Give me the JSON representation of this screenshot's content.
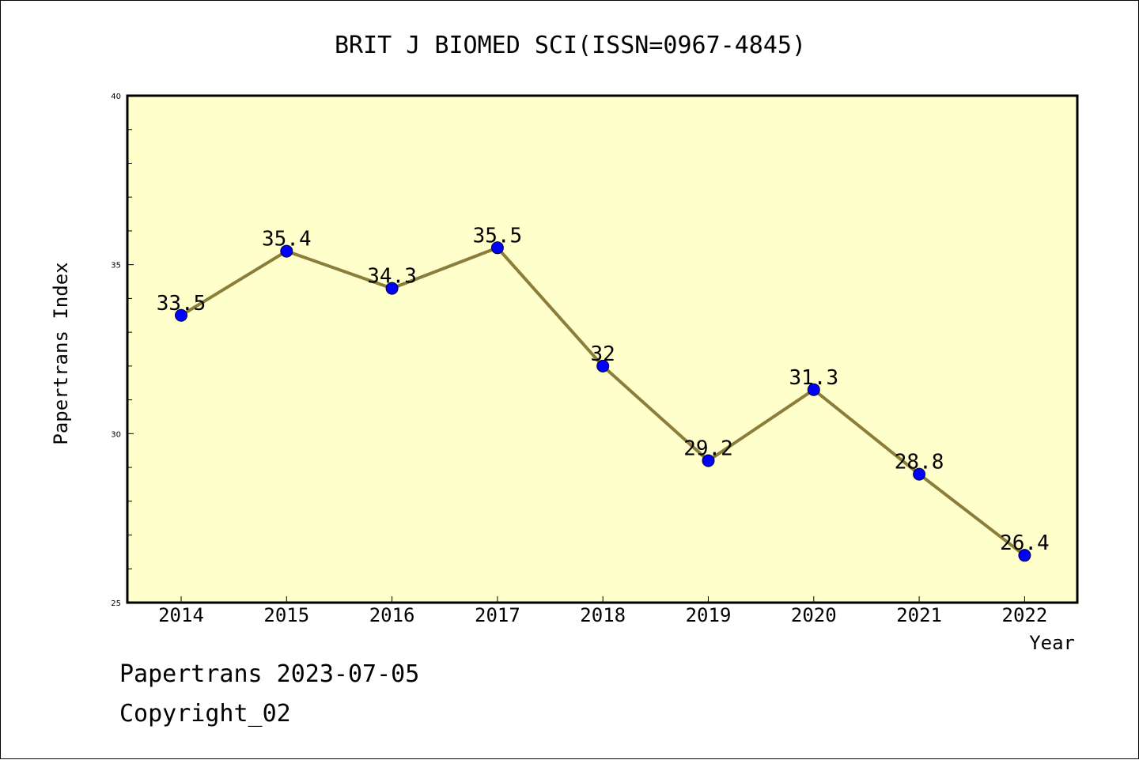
{
  "chart_data": {
    "type": "line",
    "title": "BRIT J BIOMED SCI(ISSN=0967-4845)",
    "xlabel": "Year",
    "ylabel": "Papertrans Index",
    "categories": [
      "2014",
      "2015",
      "2016",
      "2017",
      "2018",
      "2019",
      "2020",
      "2021",
      "2022"
    ],
    "values": [
      33.5,
      35.4,
      34.3,
      35.5,
      32,
      29.2,
      31.3,
      28.8,
      26.4
    ],
    "data_labels": [
      "33.5",
      "35.4",
      "34.3",
      "35.5",
      "32",
      "29.2",
      "31.3",
      "28.8",
      "26.4"
    ],
    "ylim": [
      25,
      40
    ],
    "y_ticks": [
      "25",
      "30",
      "35",
      "40"
    ],
    "grid": false,
    "colors": {
      "plot_background": "#ffffcc",
      "line": "#8b7d3a",
      "marker": "#0000ff"
    }
  },
  "footer": {
    "line1": "Papertrans 2023-07-05",
    "line2": "Copyright_02"
  }
}
